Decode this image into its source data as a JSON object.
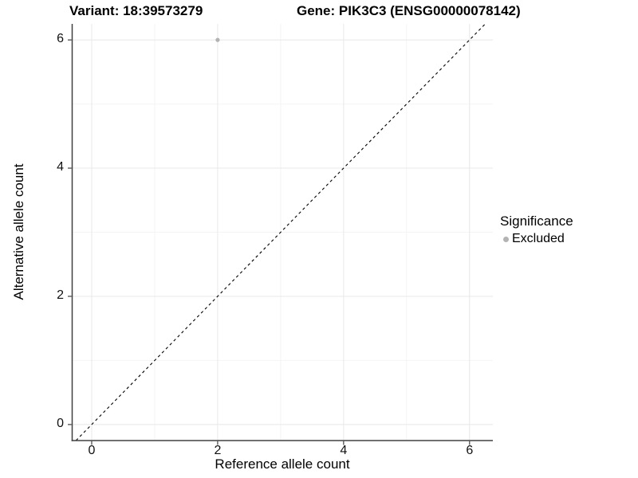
{
  "header": {
    "variant_title": "Variant: 18:39573279",
    "gene_title": "Gene: PIK3C3 (ENSG00000078142)"
  },
  "chart_data": {
    "type": "scatter",
    "xlabel": "Reference allele count",
    "ylabel": "Alternative allele count",
    "xlim": [
      -0.31,
      6.37
    ],
    "ylim": [
      -0.25,
      6.25
    ],
    "x_ticks": [
      0,
      2,
      4,
      6
    ],
    "y_ticks": [
      0,
      2,
      4,
      6
    ],
    "x_minor_ticks": [
      1,
      3,
      5
    ],
    "y_minor_ticks": [
      1,
      3,
      5
    ],
    "grid": true,
    "legend_position": "right",
    "reference_line": {
      "type": "identity_y_equals_x",
      "style": "dashed",
      "color": "#000000"
    },
    "series": [
      {
        "name": "Excluded",
        "color": "#b3b3b3",
        "points": [
          {
            "x": 2,
            "y": 6
          }
        ]
      }
    ]
  },
  "legend": {
    "title": "Significance",
    "items": [
      {
        "label": "Excluded",
        "color": "#b3b3b3"
      }
    ]
  },
  "colors": {
    "grid_major": "#e8e8e8",
    "grid_minor": "#f4f4f4",
    "axis_line": "#404040",
    "tick_text": "#111111",
    "point": "#b3b3b3",
    "reference_line": "#000000"
  }
}
